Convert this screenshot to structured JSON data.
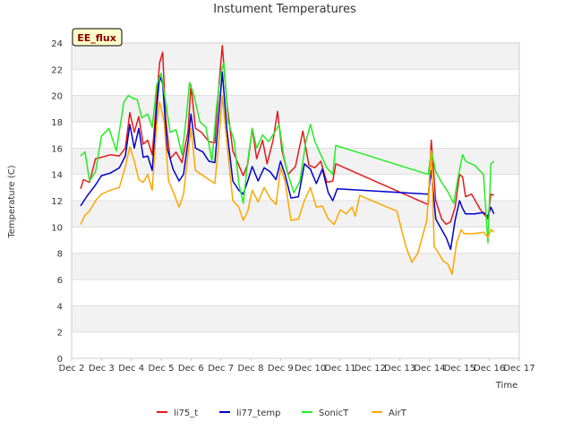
{
  "chart_data": {
    "type": "line",
    "title": "Instument Temperatures",
    "xlabel": "Time",
    "ylabel": "Temperature (C)",
    "badge": "EE_flux",
    "xlim": [
      2,
      17
    ],
    "ylim": [
      0,
      24
    ],
    "x_ticks": [
      {
        "v": 2,
        "label": "Dec 2"
      },
      {
        "v": 3,
        "label": "Dec 3"
      },
      {
        "v": 4,
        "label": "Dec 4"
      },
      {
        "v": 5,
        "label": "Dec 5"
      },
      {
        "v": 6,
        "label": "Dec 6"
      },
      {
        "v": 7,
        "label": "Dec 7"
      },
      {
        "v": 8,
        "label": "Dec 8"
      },
      {
        "v": 9,
        "label": "Dec 9"
      },
      {
        "v": 10,
        "label": "Dec 10"
      },
      {
        "v": 11,
        "label": "Dec 11"
      },
      {
        "v": 12,
        "label": "Dec 12"
      },
      {
        "v": 13,
        "label": "Dec 13"
      },
      {
        "v": 14,
        "label": "Dec 14"
      },
      {
        "v": 15,
        "label": "Dec 15"
      },
      {
        "v": 16,
        "label": "Dec 16"
      },
      {
        "v": 17,
        "label": "Dec 17"
      }
    ],
    "y_ticks": [
      0,
      2,
      4,
      6,
      8,
      10,
      12,
      14,
      16,
      18,
      20,
      22,
      24
    ],
    "legend_position": "bottom-center",
    "series": [
      {
        "name": "li75_t",
        "color": "#e31a1c",
        "points": [
          [
            2.3,
            12.9
          ],
          [
            2.4,
            13.6
          ],
          [
            2.6,
            13.4
          ],
          [
            2.8,
            15.2
          ],
          [
            3.0,
            15.3
          ],
          [
            3.3,
            15.5
          ],
          [
            3.6,
            15.4
          ],
          [
            3.8,
            16.0
          ],
          [
            3.95,
            18.7
          ],
          [
            4.1,
            17.2
          ],
          [
            4.25,
            18.4
          ],
          [
            4.4,
            16.3
          ],
          [
            4.55,
            16.6
          ],
          [
            4.7,
            15.5
          ],
          [
            4.85,
            19.8
          ],
          [
            4.95,
            22.5
          ],
          [
            5.05,
            23.3
          ],
          [
            5.15,
            18.3
          ],
          [
            5.3,
            15.2
          ],
          [
            5.5,
            15.7
          ],
          [
            5.7,
            14.9
          ],
          [
            5.9,
            17.3
          ],
          [
            6.0,
            20.8
          ],
          [
            6.15,
            17.5
          ],
          [
            6.35,
            17.2
          ],
          [
            6.6,
            16.5
          ],
          [
            6.8,
            16.4
          ],
          [
            6.95,
            21.2
          ],
          [
            7.05,
            23.8
          ],
          [
            7.2,
            19.5
          ],
          [
            7.4,
            15.8
          ],
          [
            7.6,
            14.7
          ],
          [
            7.75,
            13.9
          ],
          [
            7.9,
            14.8
          ],
          [
            8.05,
            17.5
          ],
          [
            8.2,
            15.2
          ],
          [
            8.4,
            16.6
          ],
          [
            8.55,
            14.8
          ],
          [
            8.75,
            16.6
          ],
          [
            8.9,
            18.8
          ],
          [
            9.05,
            15.8
          ],
          [
            9.25,
            14.0
          ],
          [
            9.5,
            14.6
          ],
          [
            9.75,
            17.3
          ],
          [
            9.95,
            14.7
          ],
          [
            10.15,
            14.5
          ],
          [
            10.35,
            15.0
          ],
          [
            10.55,
            13.4
          ],
          [
            10.75,
            13.5
          ],
          [
            10.85,
            14.8
          ],
          [
            13.95,
            11.7
          ],
          [
            14.05,
            16.6
          ],
          [
            14.2,
            12.0
          ],
          [
            14.4,
            10.6
          ],
          [
            14.55,
            10.2
          ],
          [
            14.7,
            10.4
          ],
          [
            14.85,
            11.5
          ],
          [
            15.0,
            14.0
          ],
          [
            15.1,
            13.8
          ],
          [
            15.2,
            12.3
          ],
          [
            15.4,
            12.5
          ],
          [
            15.7,
            11.3
          ],
          [
            15.95,
            10.6
          ],
          [
            16.05,
            12.5
          ],
          [
            16.15,
            12.4
          ]
        ]
      },
      {
        "name": "li77_temp",
        "color": "#0000cc",
        "points": [
          [
            2.3,
            11.6
          ],
          [
            2.5,
            12.3
          ],
          [
            2.8,
            13.2
          ],
          [
            3.0,
            13.9
          ],
          [
            3.3,
            14.1
          ],
          [
            3.6,
            14.5
          ],
          [
            3.8,
            15.4
          ],
          [
            3.95,
            17.8
          ],
          [
            4.1,
            16.0
          ],
          [
            4.25,
            17.5
          ],
          [
            4.4,
            15.3
          ],
          [
            4.55,
            15.4
          ],
          [
            4.7,
            14.3
          ],
          [
            4.85,
            19.0
          ],
          [
            4.95,
            21.5
          ],
          [
            5.05,
            20.9
          ],
          [
            5.2,
            16.0
          ],
          [
            5.4,
            14.4
          ],
          [
            5.6,
            13.5
          ],
          [
            5.75,
            14.0
          ],
          [
            5.9,
            16.5
          ],
          [
            6.0,
            18.6
          ],
          [
            6.15,
            16.0
          ],
          [
            6.4,
            15.7
          ],
          [
            6.6,
            15.0
          ],
          [
            6.8,
            14.9
          ],
          [
            6.95,
            19.0
          ],
          [
            7.05,
            21.8
          ],
          [
            7.2,
            17.5
          ],
          [
            7.4,
            13.5
          ],
          [
            7.6,
            12.8
          ],
          [
            7.75,
            12.5
          ],
          [
            7.9,
            13.5
          ],
          [
            8.05,
            14.6
          ],
          [
            8.25,
            13.5
          ],
          [
            8.45,
            14.5
          ],
          [
            8.65,
            14.2
          ],
          [
            8.85,
            13.6
          ],
          [
            9.0,
            15.0
          ],
          [
            9.15,
            14.0
          ],
          [
            9.35,
            12.2
          ],
          [
            9.6,
            12.3
          ],
          [
            9.8,
            14.8
          ],
          [
            10.0,
            14.4
          ],
          [
            10.2,
            13.3
          ],
          [
            10.4,
            14.4
          ],
          [
            10.6,
            12.6
          ],
          [
            10.75,
            12.0
          ],
          [
            10.9,
            12.9
          ],
          [
            13.95,
            12.5
          ],
          [
            14.05,
            14.3
          ],
          [
            14.2,
            10.6
          ],
          [
            14.4,
            9.8
          ],
          [
            14.55,
            9.2
          ],
          [
            14.7,
            8.3
          ],
          [
            14.85,
            10.5
          ],
          [
            15.0,
            12.0
          ],
          [
            15.1,
            11.4
          ],
          [
            15.2,
            11.0
          ],
          [
            15.5,
            11.0
          ],
          [
            15.8,
            11.1
          ],
          [
            15.95,
            10.8
          ],
          [
            16.05,
            11.5
          ],
          [
            16.15,
            11.0
          ]
        ]
      },
      {
        "name": "SonicT",
        "color": "#22ee22",
        "points": [
          [
            2.3,
            15.4
          ],
          [
            2.45,
            15.7
          ],
          [
            2.6,
            13.5
          ],
          [
            2.8,
            14.2
          ],
          [
            3.0,
            16.9
          ],
          [
            3.25,
            17.5
          ],
          [
            3.5,
            15.8
          ],
          [
            3.75,
            19.5
          ],
          [
            3.9,
            20.0
          ],
          [
            4.05,
            19.8
          ],
          [
            4.2,
            19.7
          ],
          [
            4.35,
            18.3
          ],
          [
            4.55,
            18.6
          ],
          [
            4.7,
            17.6
          ],
          [
            4.85,
            20.8
          ],
          [
            5.0,
            21.7
          ],
          [
            5.15,
            19.5
          ],
          [
            5.3,
            17.2
          ],
          [
            5.5,
            17.4
          ],
          [
            5.7,
            15.5
          ],
          [
            5.85,
            18.5
          ],
          [
            5.95,
            21.0
          ],
          [
            6.1,
            20.0
          ],
          [
            6.3,
            18.0
          ],
          [
            6.5,
            17.6
          ],
          [
            6.7,
            15.0
          ],
          [
            6.85,
            19.0
          ],
          [
            7.0,
            21.8
          ],
          [
            7.1,
            22.5
          ],
          [
            7.25,
            18.0
          ],
          [
            7.45,
            16.5
          ],
          [
            7.6,
            13.3
          ],
          [
            7.75,
            11.8
          ],
          [
            7.9,
            15.0
          ],
          [
            8.05,
            17.5
          ],
          [
            8.2,
            16.0
          ],
          [
            8.4,
            17.0
          ],
          [
            8.6,
            16.5
          ],
          [
            8.8,
            17.2
          ],
          [
            8.95,
            17.8
          ],
          [
            9.1,
            15.5
          ],
          [
            9.25,
            14.0
          ],
          [
            9.45,
            12.6
          ],
          [
            9.65,
            13.5
          ],
          [
            9.85,
            16.5
          ],
          [
            10.0,
            17.8
          ],
          [
            10.15,
            16.5
          ],
          [
            10.35,
            15.5
          ],
          [
            10.55,
            14.5
          ],
          [
            10.75,
            14.0
          ],
          [
            10.85,
            16.2
          ],
          [
            13.95,
            14.0
          ],
          [
            14.05,
            15.8
          ],
          [
            14.2,
            14.2
          ],
          [
            14.4,
            13.4
          ],
          [
            14.6,
            12.7
          ],
          [
            14.8,
            11.8
          ],
          [
            14.95,
            13.8
          ],
          [
            15.1,
            15.5
          ],
          [
            15.2,
            15.0
          ],
          [
            15.5,
            14.7
          ],
          [
            15.8,
            14.0
          ],
          [
            15.95,
            8.8
          ],
          [
            16.05,
            14.8
          ],
          [
            16.15,
            15.0
          ]
        ]
      },
      {
        "name": "AirT",
        "color": "#ffa500",
        "points": [
          [
            2.3,
            10.2
          ],
          [
            2.45,
            10.9
          ],
          [
            2.6,
            11.2
          ],
          [
            2.8,
            12.0
          ],
          [
            3.0,
            12.5
          ],
          [
            3.3,
            12.8
          ],
          [
            3.6,
            13.0
          ],
          [
            3.8,
            14.6
          ],
          [
            3.95,
            16.1
          ],
          [
            4.1,
            15.0
          ],
          [
            4.25,
            13.6
          ],
          [
            4.4,
            13.4
          ],
          [
            4.55,
            14.0
          ],
          [
            4.7,
            12.8
          ],
          [
            4.85,
            17.8
          ],
          [
            4.95,
            19.5
          ],
          [
            5.1,
            18.0
          ],
          [
            5.25,
            13.5
          ],
          [
            5.4,
            12.7
          ],
          [
            5.6,
            11.5
          ],
          [
            5.75,
            12.5
          ],
          [
            5.9,
            15.5
          ],
          [
            6.0,
            17.5
          ],
          [
            6.15,
            14.3
          ],
          [
            6.35,
            14.0
          ],
          [
            6.6,
            13.6
          ],
          [
            6.8,
            13.3
          ],
          [
            6.95,
            17.0
          ],
          [
            7.05,
            20.0
          ],
          [
            7.2,
            16.5
          ],
          [
            7.4,
            12.0
          ],
          [
            7.6,
            11.5
          ],
          [
            7.75,
            10.5
          ],
          [
            7.9,
            11.2
          ],
          [
            8.05,
            12.8
          ],
          [
            8.25,
            11.9
          ],
          [
            8.45,
            13.0
          ],
          [
            8.65,
            12.2
          ],
          [
            8.85,
            11.7
          ],
          [
            9.0,
            14.5
          ],
          [
            9.15,
            13.5
          ],
          [
            9.35,
            10.5
          ],
          [
            9.6,
            10.6
          ],
          [
            9.8,
            12.0
          ],
          [
            10.0,
            13.0
          ],
          [
            10.2,
            11.5
          ],
          [
            10.4,
            11.6
          ],
          [
            10.6,
            10.6
          ],
          [
            10.8,
            10.2
          ],
          [
            11.0,
            11.3
          ],
          [
            11.2,
            11.0
          ],
          [
            11.4,
            11.5
          ],
          [
            11.5,
            10.8
          ],
          [
            11.65,
            12.4
          ],
          [
            11.85,
            12.2
          ],
          [
            12.9,
            11.2
          ],
          [
            13.2,
            8.5
          ],
          [
            13.4,
            7.3
          ],
          [
            13.6,
            8.0
          ],
          [
            13.9,
            10.5
          ],
          [
            14.05,
            15.8
          ],
          [
            14.15,
            8.5
          ],
          [
            14.3,
            8.0
          ],
          [
            14.45,
            7.4
          ],
          [
            14.6,
            7.2
          ],
          [
            14.75,
            6.4
          ],
          [
            14.9,
            8.8
          ],
          [
            15.05,
            9.8
          ],
          [
            15.15,
            9.5
          ],
          [
            15.5,
            9.5
          ],
          [
            15.8,
            9.6
          ],
          [
            15.95,
            9.2
          ],
          [
            16.05,
            9.8
          ],
          [
            16.15,
            9.6
          ]
        ]
      }
    ]
  }
}
